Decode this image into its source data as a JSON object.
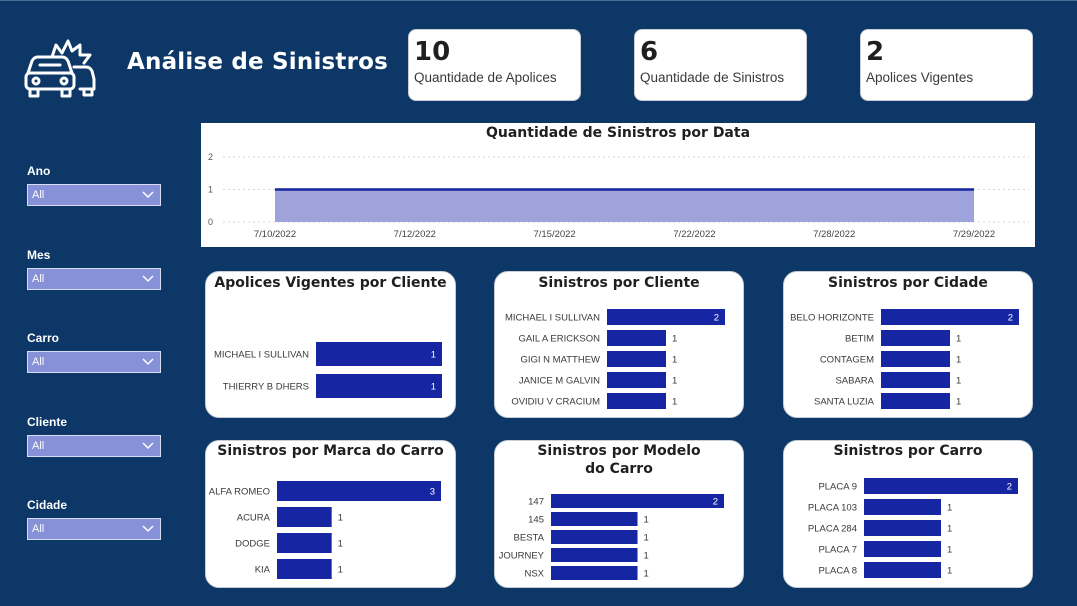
{
  "header": {
    "title": "Análise de Sinistros",
    "logo_icon": "car-crash-icon"
  },
  "kpis": [
    {
      "value": "10",
      "label": "Quantidade de Apolices"
    },
    {
      "value": "6",
      "label": "Quantidade de Sinistros"
    },
    {
      "value": "2",
      "label": "Apolices Vigentes"
    }
  ],
  "filters": [
    {
      "label": "Ano",
      "value": "All"
    },
    {
      "label": "Mes",
      "value": "All"
    },
    {
      "label": "Carro",
      "value": "All"
    },
    {
      "label": "Cliente",
      "value": "All"
    },
    {
      "label": "Cidade",
      "value": "All"
    }
  ],
  "colors": {
    "background": "#0c3766",
    "bar": "#1626a3",
    "area_fill": "#9ea3db",
    "line": "#1626a3",
    "slicer": "#8791d8"
  },
  "chart_data": [
    {
      "type": "area",
      "title": "Quantidade de Sinistros por Data",
      "categories": [
        "7/10/2022",
        "7/12/2022",
        "7/15/2022",
        "7/22/2022",
        "7/28/2022",
        "7/29/2022"
      ],
      "values": [
        1,
        1,
        1,
        1,
        1,
        1
      ],
      "yticks": [
        0,
        1,
        2
      ],
      "ylim": [
        0,
        2
      ],
      "grid": true
    },
    {
      "type": "bar",
      "orientation": "horizontal",
      "title": "Apolices Vigentes por Cliente",
      "categories": [
        "MICHAEL I SULLIVAN",
        "THIERRY B DHERS"
      ],
      "values": [
        1,
        1
      ]
    },
    {
      "type": "bar",
      "orientation": "horizontal",
      "title": "Sinistros por Cliente",
      "categories": [
        "MICHAEL I SULLIVAN",
        "GAIL A ERICKSON",
        "GIGI N MATTHEW",
        "JANICE M GALVIN",
        "OVIDIU V CRACIUM"
      ],
      "values": [
        2,
        1,
        1,
        1,
        1
      ]
    },
    {
      "type": "bar",
      "orientation": "horizontal",
      "title": "Sinistros por Cidade",
      "categories": [
        "BELO HORIZONTE",
        "BETIM",
        "CONTAGEM",
        "SABARA",
        "SANTA LUZIA"
      ],
      "values": [
        2,
        1,
        1,
        1,
        1
      ]
    },
    {
      "type": "bar",
      "orientation": "horizontal",
      "title": "Sinistros por Marca do Carro",
      "categories": [
        "ALFA ROMEO",
        "ACURA",
        "DODGE",
        "KIA"
      ],
      "values": [
        3,
        1,
        1,
        1
      ]
    },
    {
      "type": "bar",
      "orientation": "horizontal",
      "title": "Sinistros por Modelo do Carro",
      "categories": [
        "147",
        "145",
        "BESTA",
        "JOURNEY",
        "NSX"
      ],
      "values": [
        2,
        1,
        1,
        1,
        1
      ]
    },
    {
      "type": "bar",
      "orientation": "horizontal",
      "title": "Sinistros por Carro",
      "categories": [
        "PLACA 9",
        "PLACA 103",
        "PLACA 284",
        "PLACA 7",
        "PLACA 8"
      ],
      "values": [
        2,
        1,
        1,
        1,
        1
      ]
    }
  ]
}
